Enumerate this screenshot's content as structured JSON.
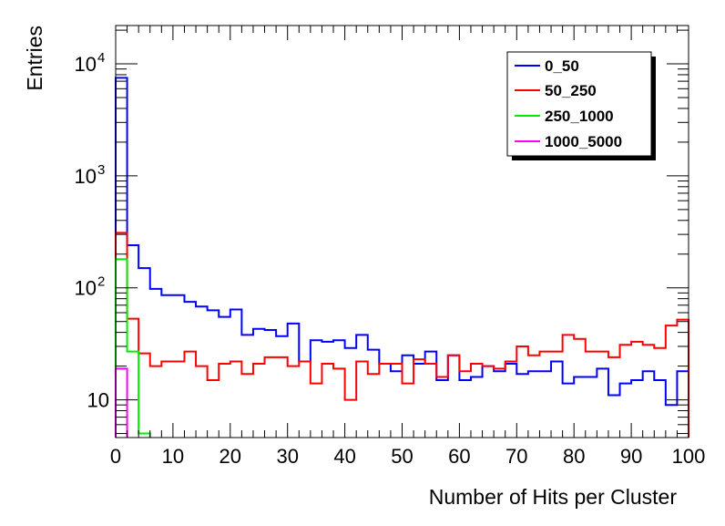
{
  "chart_data": {
    "type": "line",
    "title": "",
    "xlabel": "Number of Hits per Cluster",
    "ylabel": "Entries",
    "xlim": [
      0,
      100
    ],
    "ylim": [
      4.6,
      22000
    ],
    "yscale": "log",
    "x_ticks": [
      0,
      10,
      20,
      30,
      40,
      50,
      60,
      70,
      80,
      90,
      100
    ],
    "y_ticks": [
      {
        "value": 10,
        "base": "10",
        "exp": ""
      },
      {
        "value": 100,
        "base": "10",
        "exp": "2"
      },
      {
        "value": 1000,
        "base": "10",
        "exp": "3"
      },
      {
        "value": 10000,
        "base": "10",
        "exp": "4"
      }
    ],
    "bin_width": 2,
    "grid": false,
    "legend_position": "top-right",
    "series": [
      {
        "name": "0_50",
        "color": "#0000ff",
        "values": [
          7500,
          240,
          150,
          98,
          86,
          86,
          75,
          68,
          63,
          55,
          64,
          38,
          43,
          42,
          37,
          48,
          22,
          34,
          33,
          34,
          29,
          38,
          28,
          21,
          18,
          25,
          21,
          27,
          15,
          25,
          15,
          16,
          20,
          18,
          21,
          17,
          18,
          18,
          22,
          14,
          16,
          16,
          19,
          11,
          14,
          15,
          18,
          15,
          9,
          18
        ]
      },
      {
        "name": "50_250",
        "color": "#ff0000",
        "values": [
          310,
          53,
          26,
          20,
          22,
          22,
          27,
          20,
          15,
          21,
          22,
          17,
          21,
          24,
          24,
          20,
          22,
          14,
          21,
          19,
          10,
          22,
          17,
          21,
          21,
          14,
          23,
          21,
          16,
          25,
          18,
          21,
          20,
          19,
          22,
          30,
          25,
          27,
          27,
          38,
          35,
          27,
          27,
          24,
          31,
          33,
          31,
          29,
          46,
          52
        ]
      },
      {
        "name": "250_1000",
        "color": "#00ee00",
        "values": [
          180,
          27,
          5
        ]
      },
      {
        "name": "1000_5000",
        "color": "#ff00ff",
        "values": [
          19
        ]
      }
    ]
  }
}
